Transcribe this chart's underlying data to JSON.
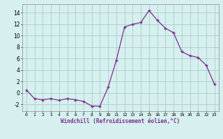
{
  "x": [
    0,
    1,
    2,
    3,
    4,
    5,
    6,
    7,
    8,
    9,
    10,
    11,
    12,
    13,
    14,
    15,
    16,
    17,
    18,
    19,
    20,
    21,
    22,
    23
  ],
  "y": [
    0.5,
    -1.0,
    -1.2,
    -1.0,
    -1.3,
    -1.0,
    -1.2,
    -1.5,
    -2.3,
    -2.3,
    1.0,
    5.7,
    11.5,
    12.0,
    12.3,
    14.4,
    12.7,
    11.3,
    10.5,
    7.2,
    6.5,
    6.2,
    4.8,
    1.5
  ],
  "line_color": "#7b2d8b",
  "marker": "+",
  "bg_color": "#d6f0f0",
  "grid_color": "#aacccc",
  "xlabel": "Windchill (Refroidissement éolien,°C)",
  "yticks": [
    -2,
    0,
    2,
    4,
    6,
    8,
    10,
    12,
    14
  ],
  "xlim": [
    -0.5,
    23.5
  ],
  "ylim": [
    -3.2,
    15.5
  ]
}
